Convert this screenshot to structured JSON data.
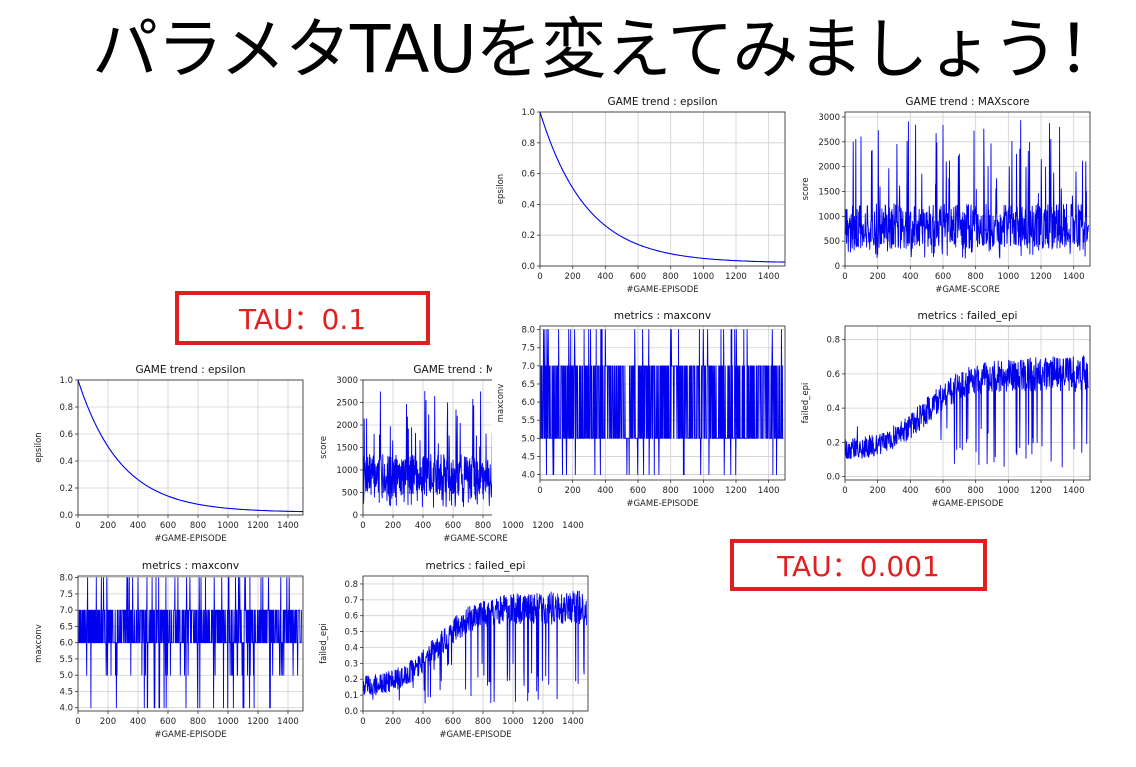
{
  "header": {
    "title": "パラメタTAUを変えてみましょう！"
  },
  "labels": {
    "tau_a": "TAU：0.1",
    "tau_b": "TAU：0.001"
  },
  "colors": {
    "series": "#0000ee",
    "box": "#e02020",
    "grid": "#d0d0d0"
  },
  "chart_data": [
    {
      "id": "a-epsilon",
      "type": "line",
      "title": "GAME trend : epsilon",
      "xlabel": "#GAME-EPISODE",
      "ylabel": "epsilon",
      "xlim": [
        0,
        1500
      ],
      "ylim": [
        0,
        1
      ],
      "xticks": [
        0,
        200,
        400,
        600,
        800,
        1000,
        1200,
        1400
      ],
      "yticks": [
        0.0,
        0.2,
        0.4,
        0.6,
        0.8,
        1.0
      ],
      "ydec": 1,
      "curve": {
        "kind": "decay",
        "start": 1.0,
        "end": 0.02,
        "rate": 0.0035
      },
      "points": [
        [
          0,
          1.0
        ],
        [
          100,
          0.71
        ],
        [
          200,
          0.51
        ],
        [
          300,
          0.36
        ],
        [
          400,
          0.26
        ],
        [
          500,
          0.19
        ],
        [
          600,
          0.14
        ],
        [
          700,
          0.11
        ],
        [
          800,
          0.08
        ],
        [
          900,
          0.06
        ],
        [
          1000,
          0.05
        ],
        [
          1100,
          0.04
        ],
        [
          1200,
          0.035
        ],
        [
          1300,
          0.03
        ],
        [
          1400,
          0.025
        ],
        [
          1500,
          0.025
        ]
      ]
    },
    {
      "id": "a-maxscore",
      "type": "line",
      "title": "GAME trend : MAXscore",
      "xlabel": "#GAME-SCORE",
      "ylabel": "score",
      "xlim": [
        0,
        1500
      ],
      "ylim": [
        0,
        3000
      ],
      "xticks": [
        0,
        200,
        400,
        600,
        800,
        1000,
        1200,
        1400
      ],
      "yticks": [
        0,
        500,
        1000,
        1500,
        2000,
        2500,
        3000
      ],
      "ydec": 0,
      "noise": {
        "kind": "score",
        "mean": 900,
        "low": 150,
        "high": 2900,
        "seed": 7
      },
      "points": [
        [
          0,
          900
        ],
        [
          250,
          1000
        ],
        [
          500,
          900
        ],
        [
          750,
          850
        ],
        [
          1000,
          850
        ],
        [
          1250,
          800
        ],
        [
          1500,
          800
        ]
      ]
    },
    {
      "id": "a-maxconv",
      "type": "line",
      "title": "metrics : maxconv",
      "xlabel": "#GAME-EPISODE",
      "ylabel": "maxconv",
      "xlim": [
        0,
        1500
      ],
      "ylim": [
        3.9,
        8.05
      ],
      "xticks": [
        0,
        200,
        400,
        600,
        800,
        1000,
        1200,
        1400
      ],
      "yticks": [
        4.0,
        4.5,
        5.0,
        5.5,
        6.0,
        6.5,
        7.0,
        7.5,
        8.0
      ],
      "ydec": 1,
      "noise": {
        "kind": "conv",
        "base_low": 6,
        "base_high": 7,
        "seed": 11
      },
      "points": [
        [
          0,
          6.5
        ],
        [
          750,
          6.5
        ],
        [
          1500,
          6.5
        ]
      ]
    },
    {
      "id": "a-failed",
      "type": "line",
      "title": "metrics : failed_epi",
      "xlabel": "#GAME-EPISODE",
      "ylabel": "failed_epi",
      "xlim": [
        0,
        1500
      ],
      "ylim": [
        0,
        0.85
      ],
      "xticks": [
        0,
        200,
        400,
        600,
        800,
        1000,
        1200,
        1400
      ],
      "yticks": [
        0.0,
        0.1,
        0.2,
        0.3,
        0.4,
        0.5,
        0.6,
        0.7,
        0.8
      ],
      "ydec": 1,
      "noise": {
        "kind": "failed",
        "start": 0.15,
        "end": 0.65,
        "seed": 5
      },
      "points": [
        [
          0,
          0.15
        ],
        [
          300,
          0.2
        ],
        [
          500,
          0.45
        ],
        [
          700,
          0.6
        ],
        [
          1000,
          0.65
        ],
        [
          1500,
          0.65
        ]
      ]
    },
    {
      "id": "b-epsilon",
      "type": "line",
      "title": "GAME trend : epsilon",
      "xlabel": "#GAME-EPISODE",
      "ylabel": "epsilon",
      "xlim": [
        0,
        1500
      ],
      "ylim": [
        0,
        1
      ],
      "xticks": [
        0,
        200,
        400,
        600,
        800,
        1000,
        1200,
        1400
      ],
      "yticks": [
        0.0,
        0.2,
        0.4,
        0.6,
        0.8,
        1.0
      ],
      "ydec": 1,
      "curve": {
        "kind": "decay",
        "start": 1.0,
        "end": 0.02,
        "rate": 0.0035
      },
      "points": [
        [
          0,
          1.0
        ],
        [
          100,
          0.71
        ],
        [
          200,
          0.51
        ],
        [
          300,
          0.36
        ],
        [
          400,
          0.26
        ],
        [
          500,
          0.19
        ],
        [
          600,
          0.14
        ],
        [
          700,
          0.11
        ],
        [
          800,
          0.08
        ],
        [
          900,
          0.06
        ],
        [
          1000,
          0.05
        ],
        [
          1100,
          0.04
        ],
        [
          1200,
          0.035
        ],
        [
          1300,
          0.03
        ],
        [
          1400,
          0.025
        ],
        [
          1500,
          0.025
        ]
      ]
    },
    {
      "id": "b-maxscore",
      "type": "line",
      "title": "GAME trend : MAXscore",
      "xlabel": "#GAME-SCORE",
      "ylabel": "score",
      "xlim": [
        0,
        1500
      ],
      "ylim": [
        0,
        3100
      ],
      "xticks": [
        0,
        200,
        400,
        600,
        800,
        1000,
        1200,
        1400
      ],
      "yticks": [
        0,
        500,
        1000,
        1500,
        2000,
        2500,
        3000
      ],
      "ydec": 0,
      "noise": {
        "kind": "score",
        "mean": 800,
        "low": 150,
        "high": 3000,
        "seed": 21
      },
      "points": [
        [
          0,
          900
        ],
        [
          250,
          850
        ],
        [
          500,
          800
        ],
        [
          750,
          800
        ],
        [
          1000,
          800
        ],
        [
          1250,
          800
        ],
        [
          1500,
          750
        ]
      ]
    },
    {
      "id": "b-maxconv",
      "type": "line",
      "title": "metrics : maxconv",
      "xlabel": "#GAME-EPISODE",
      "ylabel": "maxconv",
      "xlim": [
        0,
        1500
      ],
      "ylim": [
        3.85,
        8.1
      ],
      "xticks": [
        0,
        200,
        400,
        600,
        800,
        1000,
        1200,
        1400
      ],
      "yticks": [
        4.0,
        4.5,
        5.0,
        5.5,
        6.0,
        6.5,
        7.0,
        7.5,
        8.0
      ],
      "ydec": 1,
      "noise": {
        "kind": "conv",
        "base_low": 5,
        "base_high": 7,
        "seed": 31
      },
      "points": [
        [
          0,
          6.0
        ],
        [
          750,
          6.0
        ],
        [
          1500,
          6.0
        ]
      ]
    },
    {
      "id": "b-failed",
      "type": "line",
      "title": "metrics : failed_epi",
      "xlabel": "#GAME-EPISODE",
      "ylabel": "failed_epi",
      "xlim": [
        0,
        1500
      ],
      "ylim": [
        -0.02,
        0.88
      ],
      "xticks": [
        0,
        200,
        400,
        600,
        800,
        1000,
        1200,
        1400
      ],
      "yticks": [
        0.0,
        0.2,
        0.4,
        0.6,
        0.8
      ],
      "ydec": 1,
      "noise": {
        "kind": "failed",
        "start": 0.15,
        "end": 0.6,
        "seed": 9
      },
      "points": [
        [
          0,
          0.15
        ],
        [
          300,
          0.22
        ],
        [
          500,
          0.35
        ],
        [
          800,
          0.5
        ],
        [
          1200,
          0.6
        ],
        [
          1500,
          0.6
        ]
      ]
    }
  ]
}
